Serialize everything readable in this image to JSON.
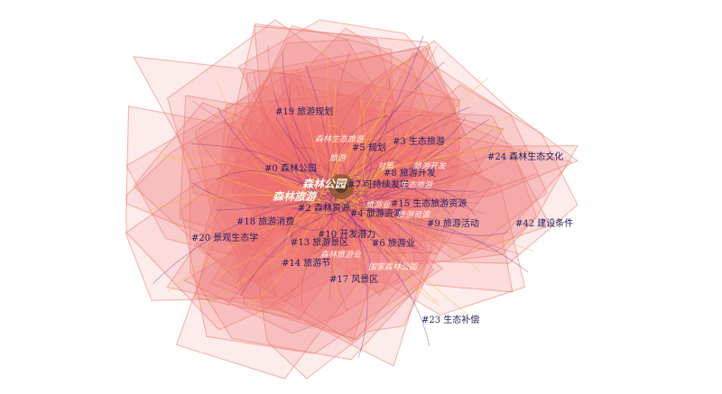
{
  "clusters": [
    "#19 旅游规划",
    "#5 规划",
    "#3 生态旅游",
    "#24 森林生态文化",
    "#0 森林公园",
    "#8 旅游开发",
    "#7 可持续发展",
    "#15 生态旅游资源",
    "#2 森林资源",
    "#4 旅游资源",
    "#9 旅游活动",
    "#42 建设条件",
    "#18 旅游消费",
    "#20 景观生态学",
    "#10 开发潜力",
    "#13 旅游景区",
    "#6 旅游业",
    "#14 旅游节",
    "#17 风景区",
    "#23 生态补偿"
  ],
  "keywords": [
    "森林生态旅游",
    "旅游",
    "对策",
    "旅游开发",
    "森林公园",
    "生态旅游",
    "森林旅游",
    "旅游业",
    "旅游资源",
    "森林旅游业",
    "国家森林公园"
  ]
}
